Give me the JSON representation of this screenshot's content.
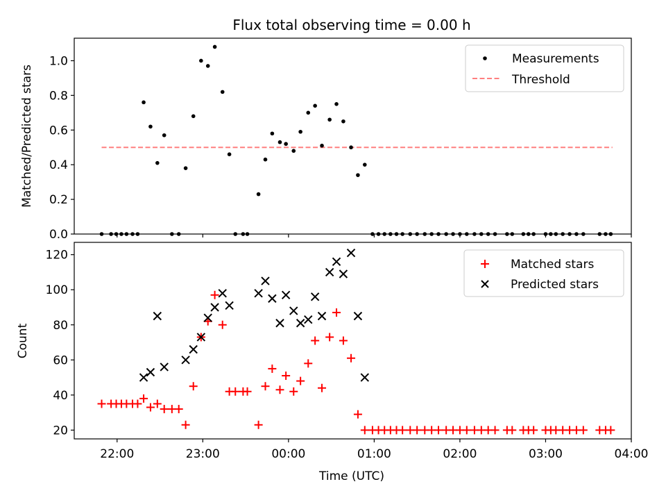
{
  "chart_data": [
    {
      "type": "scatter",
      "title": "Flux total observing time = 0.00 h",
      "xlabel": "",
      "ylabel": "Matched/Predicted stars",
      "xlim": [
        21.5,
        28.0
      ],
      "ylim": [
        0.0,
        1.13
      ],
      "xticks": [
        22,
        23,
        24,
        25,
        26,
        27,
        28
      ],
      "yticks": [
        0.0,
        0.2,
        0.4,
        0.6,
        0.8,
        1.0
      ],
      "ytick_labels": [
        "0.0",
        "0.2",
        "0.4",
        "0.6",
        "0.8",
        "1.0"
      ],
      "legend": {
        "position": "top-right",
        "entries": [
          "Measurements",
          "Threshold"
        ]
      },
      "threshold": {
        "name": "Threshold",
        "value": 0.5,
        "x_range": [
          21.82,
          27.78
        ],
        "color": "#ff7f7f"
      },
      "series": [
        {
          "name": "Measurements",
          "color": "#000000",
          "points": [
            [
              21.82,
              0.0
            ],
            [
              21.93,
              0.0
            ],
            [
              21.99,
              0.0
            ],
            [
              22.05,
              0.0
            ],
            [
              22.11,
              0.0
            ],
            [
              22.18,
              0.0
            ],
            [
              22.24,
              0.0
            ],
            [
              22.31,
              0.76
            ],
            [
              22.39,
              0.62
            ],
            [
              22.47,
              0.41
            ],
            [
              22.55,
              0.57
            ],
            [
              22.64,
              0.0
            ],
            [
              22.72,
              0.0
            ],
            [
              22.8,
              0.38
            ],
            [
              22.89,
              0.68
            ],
            [
              22.98,
              1.0
            ],
            [
              23.06,
              0.97
            ],
            [
              23.14,
              1.08
            ],
            [
              23.23,
              0.82
            ],
            [
              23.31,
              0.46
            ],
            [
              23.38,
              0.0
            ],
            [
              23.47,
              0.0
            ],
            [
              23.52,
              0.0
            ],
            [
              23.65,
              0.23
            ],
            [
              23.73,
              0.43
            ],
            [
              23.81,
              0.58
            ],
            [
              23.9,
              0.53
            ],
            [
              23.97,
              0.52
            ],
            [
              24.06,
              0.48
            ],
            [
              24.14,
              0.59
            ],
            [
              24.23,
              0.7
            ],
            [
              24.31,
              0.74
            ],
            [
              24.39,
              0.51
            ],
            [
              24.48,
              0.66
            ],
            [
              24.56,
              0.75
            ],
            [
              24.64,
              0.65
            ],
            [
              24.73,
              0.5
            ],
            [
              24.81,
              0.34
            ],
            [
              24.89,
              0.4
            ],
            [
              24.98,
              0.0
            ],
            [
              25.05,
              0.0
            ],
            [
              25.12,
              0.0
            ],
            [
              25.19,
              0.0
            ],
            [
              25.26,
              0.0
            ],
            [
              25.33,
              0.0
            ],
            [
              25.42,
              0.0
            ],
            [
              25.5,
              0.0
            ],
            [
              25.59,
              0.0
            ],
            [
              25.67,
              0.0
            ],
            [
              25.75,
              0.0
            ],
            [
              25.84,
              0.0
            ],
            [
              25.92,
              0.0
            ],
            [
              26.0,
              0.0
            ],
            [
              26.08,
              0.0
            ],
            [
              26.17,
              0.0
            ],
            [
              26.25,
              0.0
            ],
            [
              26.33,
              0.0
            ],
            [
              26.41,
              0.0
            ],
            [
              26.55,
              0.0
            ],
            [
              26.61,
              0.0
            ],
            [
              26.74,
              0.0
            ],
            [
              26.8,
              0.0
            ],
            [
              26.86,
              0.0
            ],
            [
              27.0,
              0.0
            ],
            [
              27.06,
              0.0
            ],
            [
              27.12,
              0.0
            ],
            [
              27.2,
              0.0
            ],
            [
              27.28,
              0.0
            ],
            [
              27.36,
              0.0
            ],
            [
              27.44,
              0.0
            ],
            [
              27.63,
              0.0
            ],
            [
              27.7,
              0.0
            ],
            [
              27.76,
              0.0
            ]
          ]
        }
      ]
    },
    {
      "type": "scatter",
      "title": "",
      "xlabel": "Time (UTC)",
      "ylabel": "Count",
      "xlim": [
        21.5,
        28.0
      ],
      "ylim": [
        15,
        127
      ],
      "xticks": [
        22,
        23,
        24,
        25,
        26,
        27,
        28
      ],
      "xtick_labels": [
        "22:00",
        "23:00",
        "00:00",
        "01:00",
        "02:00",
        "03:00",
        "04:00"
      ],
      "yticks": [
        20,
        40,
        60,
        80,
        100,
        120
      ],
      "ytick_labels": [
        "20",
        "40",
        "60",
        "80",
        "100",
        "120"
      ],
      "legend": {
        "position": "top-right",
        "entries": [
          "Matched stars",
          "Predicted stars"
        ]
      },
      "series": [
        {
          "name": "Matched stars",
          "marker": "+",
          "color": "#ff0000",
          "points": [
            [
              21.82,
              35
            ],
            [
              21.93,
              35
            ],
            [
              21.99,
              35
            ],
            [
              22.05,
              35
            ],
            [
              22.11,
              35
            ],
            [
              22.18,
              35
            ],
            [
              22.24,
              35
            ],
            [
              22.31,
              38
            ],
            [
              22.39,
              33
            ],
            [
              22.47,
              35
            ],
            [
              22.55,
              32
            ],
            [
              22.64,
              32
            ],
            [
              22.72,
              32
            ],
            [
              22.8,
              23
            ],
            [
              22.89,
              45
            ],
            [
              22.98,
              73
            ],
            [
              23.06,
              82
            ],
            [
              23.14,
              97
            ],
            [
              23.23,
              80
            ],
            [
              23.31,
              42
            ],
            [
              23.38,
              42
            ],
            [
              23.47,
              42
            ],
            [
              23.52,
              42
            ],
            [
              23.65,
              23
            ],
            [
              23.73,
              45
            ],
            [
              23.81,
              55
            ],
            [
              23.9,
              43
            ],
            [
              23.97,
              51
            ],
            [
              24.06,
              42
            ],
            [
              24.14,
              48
            ],
            [
              24.23,
              58
            ],
            [
              24.31,
              71
            ],
            [
              24.39,
              44
            ],
            [
              24.48,
              73
            ],
            [
              24.56,
              87
            ],
            [
              24.64,
              71
            ],
            [
              24.73,
              61
            ],
            [
              24.81,
              29
            ],
            [
              24.89,
              20
            ],
            [
              24.98,
              20
            ],
            [
              25.05,
              20
            ],
            [
              25.12,
              20
            ],
            [
              25.19,
              20
            ],
            [
              25.26,
              20
            ],
            [
              25.33,
              20
            ],
            [
              25.42,
              20
            ],
            [
              25.5,
              20
            ],
            [
              25.59,
              20
            ],
            [
              25.67,
              20
            ],
            [
              25.75,
              20
            ],
            [
              25.84,
              20
            ],
            [
              25.92,
              20
            ],
            [
              26.0,
              20
            ],
            [
              26.08,
              20
            ],
            [
              26.17,
              20
            ],
            [
              26.25,
              20
            ],
            [
              26.33,
              20
            ],
            [
              26.41,
              20
            ],
            [
              26.55,
              20
            ],
            [
              26.61,
              20
            ],
            [
              26.74,
              20
            ],
            [
              26.8,
              20
            ],
            [
              26.86,
              20
            ],
            [
              27.0,
              20
            ],
            [
              27.06,
              20
            ],
            [
              27.12,
              20
            ],
            [
              27.2,
              20
            ],
            [
              27.28,
              20
            ],
            [
              27.36,
              20
            ],
            [
              27.44,
              20
            ],
            [
              27.63,
              20
            ],
            [
              27.7,
              20
            ],
            [
              27.76,
              20
            ]
          ]
        },
        {
          "name": "Predicted stars",
          "marker": "x",
          "color": "#000000",
          "points": [
            [
              22.31,
              50
            ],
            [
              22.39,
              53
            ],
            [
              22.47,
              85
            ],
            [
              22.55,
              56
            ],
            [
              22.8,
              60
            ],
            [
              22.89,
              66
            ],
            [
              22.98,
              73
            ],
            [
              23.06,
              84
            ],
            [
              23.14,
              90
            ],
            [
              23.23,
              98
            ],
            [
              23.31,
              91
            ],
            [
              23.65,
              98
            ],
            [
              23.73,
              105
            ],
            [
              23.81,
              95
            ],
            [
              23.9,
              81
            ],
            [
              23.97,
              97
            ],
            [
              24.06,
              88
            ],
            [
              24.14,
              81
            ],
            [
              24.23,
              83
            ],
            [
              24.31,
              96
            ],
            [
              24.39,
              85
            ],
            [
              24.48,
              110
            ],
            [
              24.56,
              116
            ],
            [
              24.64,
              109
            ],
            [
              24.73,
              121
            ],
            [
              24.81,
              85
            ],
            [
              24.89,
              50
            ]
          ]
        }
      ]
    }
  ]
}
